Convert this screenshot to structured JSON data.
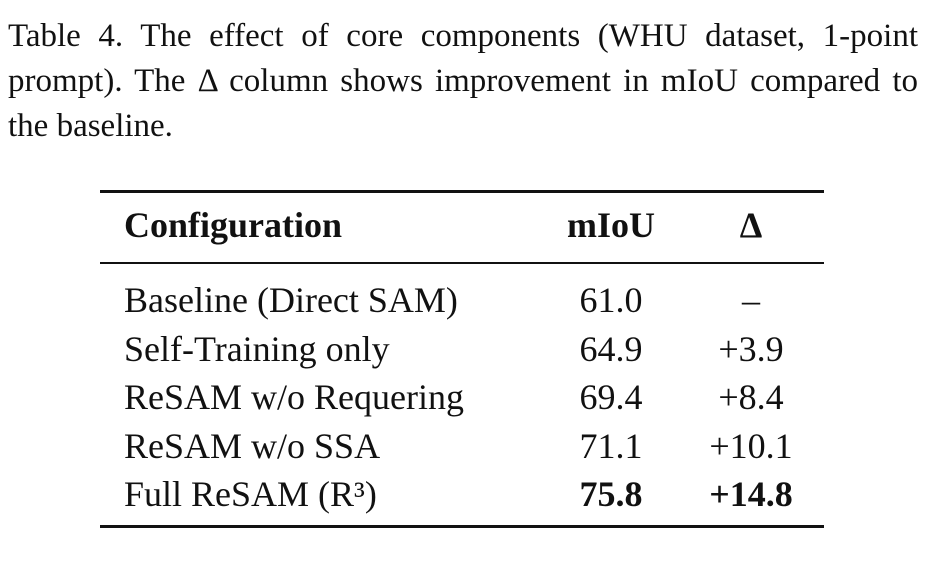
{
  "caption": "Table 4. The effect of core components (WHU dataset, 1-point prompt). The Δ column shows improvement in mIoU compared to the baseline.",
  "table": {
    "headers": {
      "configuration": "Configuration",
      "miou": "mIoU",
      "delta": "Δ"
    },
    "rows": [
      {
        "configuration": "Baseline (Direct SAM)",
        "miou": "61.0",
        "delta": "–"
      },
      {
        "configuration": "Self-Training only",
        "miou": "64.9",
        "delta": "+3.9"
      },
      {
        "configuration": "ReSAM w/o Requering",
        "miou": "69.4",
        "delta": "+8.4"
      },
      {
        "configuration": "ReSAM w/o SSA",
        "miou": "71.1",
        "delta": "+10.1"
      },
      {
        "configuration": "Full ReSAM (R³)",
        "miou": "75.8",
        "delta": "+14.8"
      }
    ]
  }
}
